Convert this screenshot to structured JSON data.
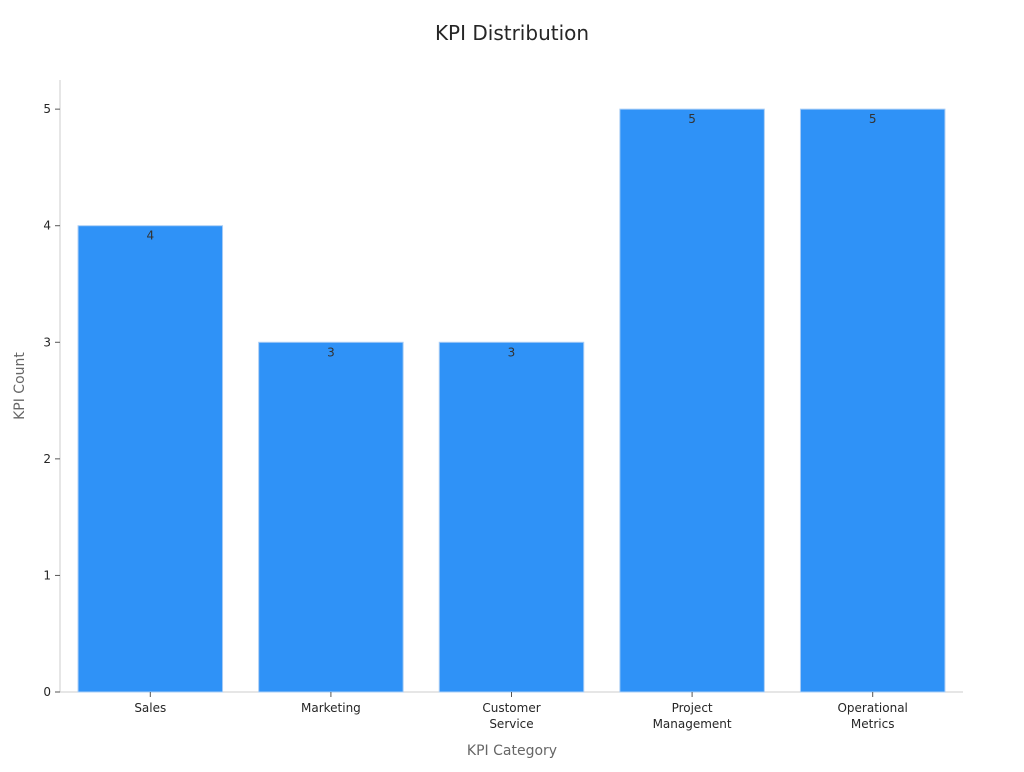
{
  "chart_data": {
    "type": "bar",
    "title": "KPI Distribution",
    "xlabel": "KPI Category",
    "ylabel": "KPI Count",
    "categories": [
      "Sales",
      "Marketing",
      "Customer Service",
      "Project Management",
      "Operational Metrics"
    ],
    "category_label_lines": [
      [
        "Sales"
      ],
      [
        "Marketing"
      ],
      [
        "Customer",
        "Service"
      ],
      [
        "Project",
        "Management"
      ],
      [
        "Operational",
        "Metrics"
      ]
    ],
    "values": [
      4,
      3,
      3,
      5,
      5
    ],
    "data_labels": [
      "4",
      "3",
      "3",
      "5",
      "5"
    ],
    "yticks": [
      0,
      1,
      2,
      3,
      4,
      5
    ],
    "ylim": [
      0,
      5.25
    ],
    "grid": false,
    "legend": "none",
    "bar_color": "#2f92f7",
    "bar_edge_color": "#a9cdf5"
  }
}
